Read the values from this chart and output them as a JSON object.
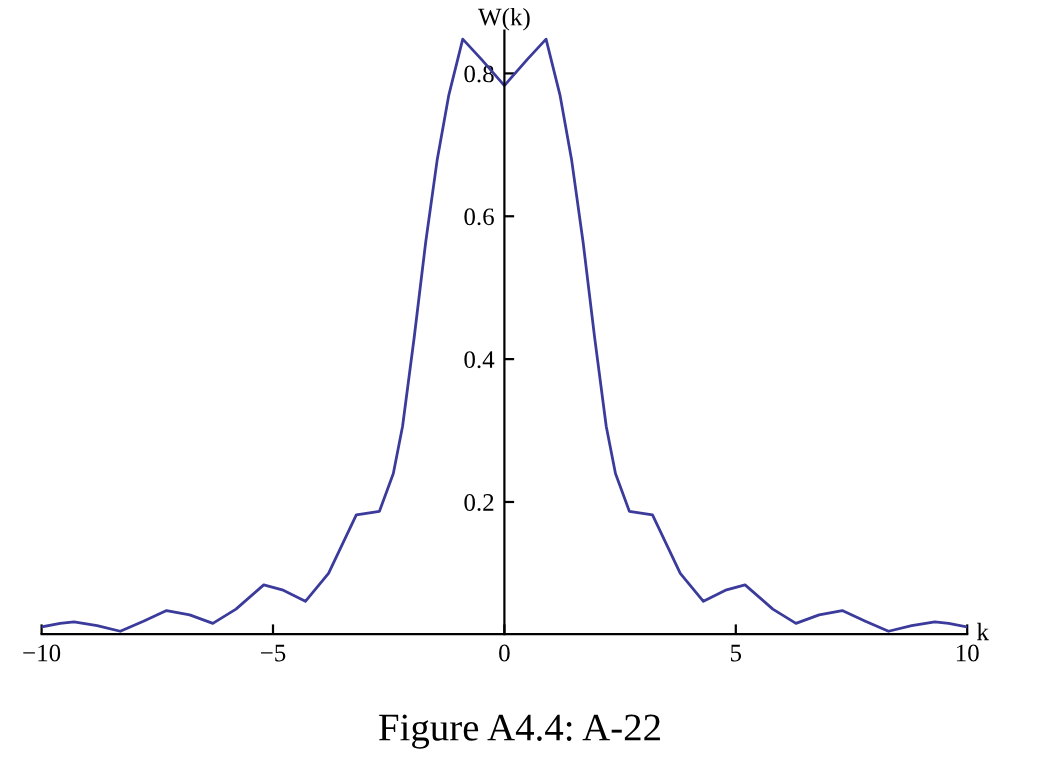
{
  "chart_data": {
    "type": "line",
    "xlabel": "k",
    "ylabel": "W(k)",
    "annotations": [
      "Figure A4.4: A-22"
    ],
    "series": [
      {
        "color": "#3b3b9c",
        "x": [
          -10,
          -9.6,
          -9.3,
          -8.8,
          -8.3,
          -7.8,
          -7.3,
          -6.8,
          -6.3,
          -5.8,
          -5.2,
          -4.8,
          -4.3,
          -3.8,
          -3.2,
          -2.7,
          -2.4,
          -2.2,
          -1.95,
          -1.7,
          -1.45,
          -1.2,
          -0.9,
          -0.5,
          0,
          0.5,
          0.9,
          1.2,
          1.45,
          1.7,
          1.95,
          2.2,
          2.4,
          2.7,
          3.2,
          3.8,
          4.3,
          4.8,
          5.2,
          5.8,
          6.3,
          6.8,
          7.3,
          7.8,
          8.3,
          8.8,
          9.3,
          9.6,
          10
        ],
        "values": [
          0.025,
          0.03,
          0.032,
          0.027,
          0.019,
          0.033,
          0.048,
          0.042,
          0.03,
          0.05,
          0.084,
          0.077,
          0.061,
          0.1,
          0.182,
          0.187,
          0.24,
          0.306,
          0.43,
          0.564,
          0.68,
          0.77,
          0.848,
          0.82,
          0.783,
          0.82,
          0.848,
          0.77,
          0.68,
          0.564,
          0.43,
          0.306,
          0.24,
          0.187,
          0.182,
          0.1,
          0.061,
          0.077,
          0.084,
          0.05,
          0.03,
          0.042,
          0.048,
          0.033,
          0.019,
          0.027,
          0.032,
          0.03,
          0.025
        ]
      }
    ],
    "xlim": [
      -10,
      10
    ],
    "ylim": [
      0.015,
      0.86
    ],
    "xticks": [
      {
        "value": -10,
        "label": "−10"
      },
      {
        "value": -5,
        "label": "−5"
      },
      0,
      5,
      10
    ],
    "yticks": [
      0.2,
      0.4,
      0.6,
      0.8
    ],
    "grid": false,
    "legend": false,
    "marker": "none",
    "line_style": "solid"
  }
}
